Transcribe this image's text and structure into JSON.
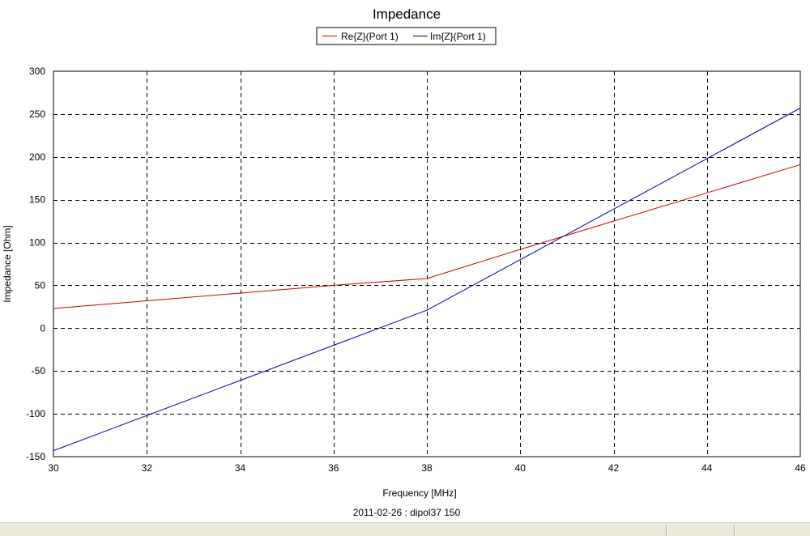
{
  "chart_data": {
    "type": "line",
    "title": "Impedance",
    "xlabel": "Frequency [MHz]",
    "ylabel": "Impedance [Ohm]",
    "caption": "2011-02-26 : dipol37 150",
    "xlim": [
      30,
      46
    ],
    "ylim": [
      -150,
      300
    ],
    "x_ticks": [
      30,
      32,
      34,
      36,
      38,
      40,
      42,
      44,
      46
    ],
    "y_ticks": [
      -150,
      -100,
      -50,
      0,
      50,
      100,
      150,
      200,
      250,
      300
    ],
    "grid": true,
    "legend_position": "top-center",
    "series": [
      {
        "name": "Re{Z}(Port 1)",
        "color": "#cc0000",
        "x": [
          30,
          32,
          34,
          36,
          38,
          40,
          42,
          44,
          46
        ],
        "y": [
          23,
          32,
          41,
          50,
          58,
          92,
          125,
          158,
          191
        ]
      },
      {
        "name": "Im{Z}(Port 1)",
        "color": "#000099",
        "x": [
          30,
          32,
          34,
          36,
          38,
          40,
          42,
          44,
          46
        ],
        "y": [
          -143,
          -102,
          -61,
          -20,
          21,
          80,
          139,
          198,
          257
        ]
      }
    ]
  }
}
